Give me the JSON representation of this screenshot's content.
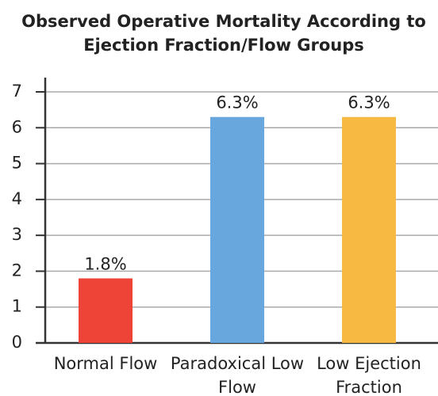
{
  "chart_data": {
    "type": "bar",
    "title": "Observed Operative Mortality According to Ejection Fraction/Flow Groups",
    "categories": [
      "Normal Flow",
      "Paradoxical Low Flow",
      "Low Ejection Fraction"
    ],
    "values": [
      1.8,
      6.3,
      6.3
    ],
    "value_labels": [
      "1.8%",
      "6.3%",
      "6.3%"
    ],
    "colors": [
      "#ee4437",
      "#68a7dd",
      "#f6b942"
    ],
    "ylim": [
      0,
      7
    ],
    "yticks": [
      0,
      1,
      2,
      3,
      4,
      5,
      6,
      7
    ],
    "grid": true
  }
}
